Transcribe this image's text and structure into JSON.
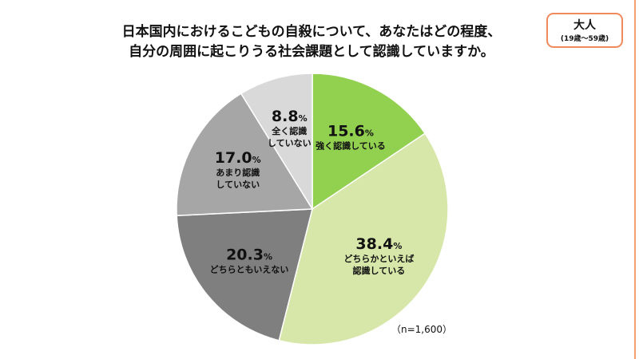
{
  "title_line1": "日本国内におけるこどもの自殺について、あなたはどの程度、",
  "title_line2": "自分の周囲に起こりうる社会課題として認識していますか。",
  "badge": {
    "label": "大人",
    "sub": "(19歳～59歳)"
  },
  "note": "（n=1,600）",
  "chart_data": {
    "type": "pie",
    "title": "日本国内におけるこどもの自殺について、あなたはどの程度、自分の周囲に起こりうる社会課題として認識していますか。",
    "unit": "%",
    "start": "12 o'clock, clockwise",
    "slices": [
      {
        "label": "強く認識している",
        "value": 15.6,
        "value_text": "15.6",
        "color": "#92d050"
      },
      {
        "label": "どちらかといえば\n認識している",
        "value": 38.4,
        "value_text": "38.4",
        "color": "#d7e7a9"
      },
      {
        "label": "どちらともいえない",
        "value": 20.3,
        "value_text": "20.3",
        "color": "#7f7f7f"
      },
      {
        "label": "あまり認識\nしていない",
        "value": 17.0,
        "value_text": "17.0",
        "color": "#a6a6a6"
      },
      {
        "label": "全く認識\nしていない",
        "value": 8.8,
        "value_text": "8.8",
        "color": "#d9d9d9"
      }
    ]
  }
}
